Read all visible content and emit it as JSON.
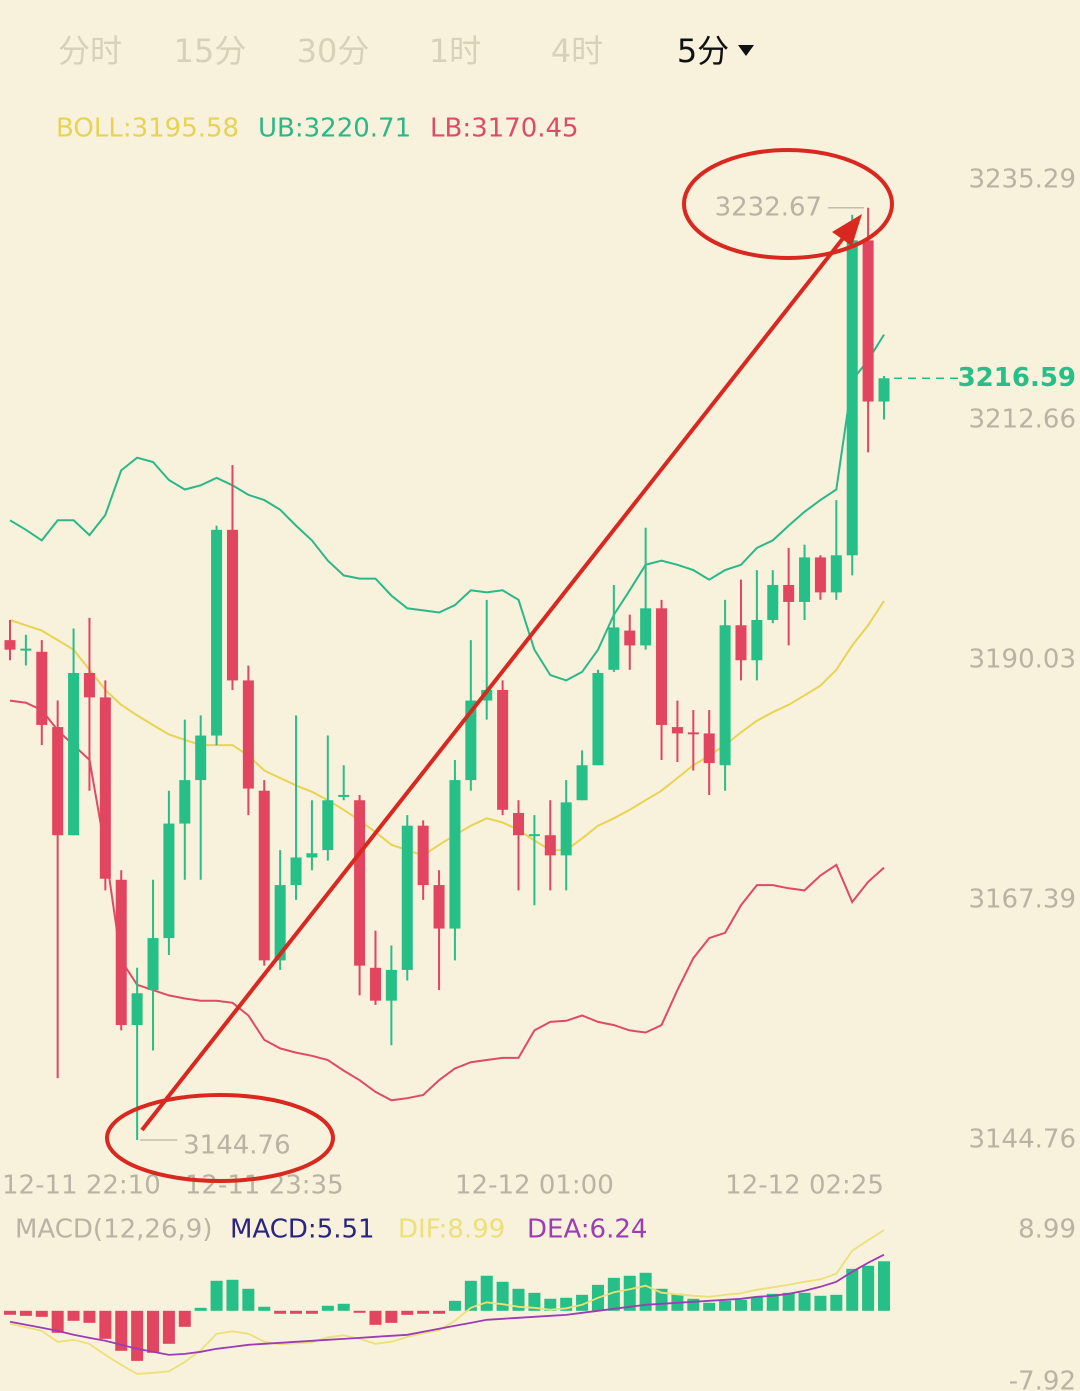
{
  "tabs": [
    "分时",
    "15分",
    "30分",
    "1时",
    "4时",
    "5分"
  ],
  "chart_data": [
    {
      "type": "candlestick",
      "categories": [
        "12-11 22:10",
        null,
        null,
        null,
        null,
        null,
        null,
        null,
        null,
        null,
        null,
        null,
        null,
        null,
        null,
        null,
        "12-11 23:35",
        null,
        null,
        null,
        null,
        null,
        null,
        null,
        null,
        null,
        null,
        null,
        null,
        null,
        null,
        null,
        null,
        "12-12 01:00",
        null,
        null,
        null,
        null,
        null,
        null,
        null,
        null,
        null,
        null,
        null,
        null,
        null,
        null,
        null,
        null,
        "12-12 02:25",
        null,
        null,
        null,
        null,
        null
      ],
      "open": [
        3191.9,
        3191.0,
        3190.8,
        3183.7,
        3173.5,
        3188.8,
        3186.5,
        3169.3,
        3155.6,
        3158.9,
        3163.8,
        3174.6,
        3178.7,
        3182.9,
        3202.3,
        3188.1,
        3177.7,
        3161.7,
        3168.8,
        3171.4,
        3172.1,
        3177.2,
        3176.8,
        3161.0,
        3157.9,
        3160.8,
        3174.4,
        3168.8,
        3164.7,
        3178.7,
        3186.2,
        3187.2,
        3175.6,
        3173.5,
        3173.5,
        3171.6,
        3176.8,
        3180.1,
        3189.1,
        3192.8,
        3191.4,
        3194.9,
        3183.7,
        3183.2,
        3183.1,
        3180.1,
        3193.3,
        3190.0,
        3193.8,
        3197.1,
        3195.5,
        3199.7,
        3196.4,
        3199.9,
        3229.6,
        3214.4
      ],
      "high": [
        3193.8,
        3192.4,
        3191.9,
        3186.2,
        3193.0,
        3194.0,
        3188.1,
        3170.2,
        3161.0,
        3169.3,
        3177.7,
        3184.4,
        3184.8,
        3202.7,
        3208.4,
        3189.5,
        3178.7,
        3172.1,
        3184.8,
        3176.8,
        3182.9,
        3180.1,
        3177.3,
        3164.5,
        3163.1,
        3175.4,
        3174.9,
        3170.2,
        3180.6,
        3191.9,
        3195.7,
        3188.1,
        3176.8,
        3175.4,
        3176.8,
        3178.7,
        3181.5,
        3189.1,
        3197.1,
        3194.3,
        3202.5,
        3195.7,
        3186.2,
        3185.3,
        3185.3,
        3195.7,
        3197.6,
        3198.5,
        3198.5,
        3200.6,
        3200.9,
        3199.9,
        3205.1,
        3232.0,
        3232.67,
        3216.8
      ],
      "low": [
        3190.0,
        3189.5,
        3182.0,
        3150.6,
        3173.5,
        3177.7,
        3168.3,
        3155.1,
        3144.76,
        3153.2,
        3162.2,
        3169.3,
        3169.3,
        3182.0,
        3187.2,
        3175.4,
        3161.2,
        3160.8,
        3167.4,
        3170.2,
        3171.1,
        3176.8,
        3158.4,
        3157.5,
        3153.7,
        3159.8,
        3167.4,
        3158.9,
        3161.7,
        3177.7,
        3184.4,
        3175.4,
        3168.3,
        3166.9,
        3168.3,
        3168.3,
        3176.8,
        3180.1,
        3188.9,
        3189.1,
        3191.0,
        3180.6,
        3180.4,
        3179.6,
        3177.3,
        3177.7,
        3188.1,
        3188.1,
        3193.5,
        3191.4,
        3193.8,
        3195.7,
        3195.7,
        3198.0,
        3209.6,
        3212.7
      ],
      "close": [
        3191.0,
        3191.1,
        3183.9,
        3173.5,
        3188.8,
        3186.5,
        3169.4,
        3155.6,
        3158.6,
        3163.8,
        3174.6,
        3178.7,
        3182.9,
        3202.3,
        3188.1,
        3177.9,
        3161.7,
        3168.8,
        3171.4,
        3171.8,
        3176.8,
        3177.3,
        3161.2,
        3157.9,
        3160.8,
        3174.4,
        3168.8,
        3164.7,
        3178.7,
        3186.2,
        3187.2,
        3175.9,
        3173.5,
        3173.6,
        3171.6,
        3176.6,
        3180.1,
        3188.8,
        3193.1,
        3191.4,
        3194.9,
        3183.9,
        3183.1,
        3183.1,
        3180.3,
        3193.3,
        3190.0,
        3193.8,
        3197.1,
        3195.5,
        3199.7,
        3196.4,
        3199.9,
        3229.6,
        3214.4,
        3216.59
      ],
      "up_color": "#26bf87",
      "down_color": "#e2455f",
      "series": [
        {
          "name": "BOLL:3195.58",
          "color": "#e6d453",
          "values": [
            3193.8,
            3193.3,
            3192.8,
            3191.9,
            3191.0,
            3189.1,
            3187.2,
            3185.8,
            3184.8,
            3183.9,
            3183.0,
            3182.5,
            3182.0,
            3182.0,
            3182.0,
            3181.0,
            3179.6,
            3178.9,
            3178.2,
            3177.6,
            3176.8,
            3175.9,
            3174.9,
            3173.8,
            3172.6,
            3172.1,
            3171.6,
            3172.6,
            3173.5,
            3174.4,
            3175.1,
            3174.7,
            3174.0,
            3173.0,
            3172.1,
            3172.1,
            3173.2,
            3174.4,
            3175.1,
            3175.9,
            3176.8,
            3177.7,
            3178.9,
            3180.1,
            3181.0,
            3182.0,
            3183.2,
            3184.3,
            3185.1,
            3185.8,
            3186.7,
            3187.6,
            3189.1,
            3191.4,
            3193.3,
            3195.58
          ]
        },
        {
          "name": "UB:3220.71",
          "color": "#2bb889",
          "values": [
            3203.2,
            3202.3,
            3201.3,
            3203.2,
            3203.2,
            3201.8,
            3203.7,
            3207.9,
            3209.1,
            3208.7,
            3207.0,
            3206.1,
            3206.5,
            3207.2,
            3206.5,
            3205.6,
            3205.1,
            3204.2,
            3202.7,
            3201.3,
            3199.4,
            3198.0,
            3197.7,
            3197.7,
            3196.1,
            3194.9,
            3194.7,
            3194.5,
            3195.2,
            3196.6,
            3196.4,
            3196.6,
            3195.7,
            3191.0,
            3188.6,
            3188.1,
            3188.9,
            3191.0,
            3194.3,
            3196.6,
            3199.0,
            3199.4,
            3199.0,
            3198.5,
            3197.6,
            3198.5,
            3199.0,
            3200.6,
            3201.3,
            3202.7,
            3204.0,
            3205.1,
            3206.1,
            3216.4,
            3218.3,
            3220.71
          ]
        },
        {
          "name": "LB:3170.45",
          "color": "#df4b63",
          "values": [
            3186.2,
            3186.0,
            3185.3,
            3183.4,
            3182.0,
            3180.6,
            3172.1,
            3161.7,
            3159.4,
            3158.9,
            3158.4,
            3158.1,
            3157.9,
            3157.9,
            3157.7,
            3156.5,
            3154.2,
            3153.4,
            3153.0,
            3152.7,
            3152.3,
            3151.3,
            3150.4,
            3149.3,
            3148.5,
            3148.7,
            3149.0,
            3150.4,
            3151.5,
            3152.1,
            3152.3,
            3152.5,
            3152.5,
            3155.1,
            3155.9,
            3156.0,
            3156.5,
            3155.9,
            3155.6,
            3155.1,
            3154.9,
            3155.6,
            3158.9,
            3161.9,
            3163.8,
            3164.3,
            3166.9,
            3168.8,
            3168.8,
            3168.5,
            3168.3,
            3169.7,
            3170.7,
            3167.2,
            3169.1,
            3170.45
          ]
        }
      ],
      "ylim": [
        3144.76,
        3235.29
      ],
      "yticks": [
        3144.76,
        3167.39,
        3190.03,
        3212.66,
        3235.29
      ],
      "last_price": 3216.59,
      "high_annotation": 3232.67,
      "low_annotation": 3144.76
    },
    {
      "type": "macd",
      "title": "MACD(12,26,9)",
      "up_color": "#26bf87",
      "down_color": "#e2455f",
      "histogram": {
        "name": "MACD:5.51",
        "color": "#2a2580",
        "values": [
          -0.44,
          -0.56,
          -0.67,
          -2.45,
          -1.11,
          -1.34,
          -3.12,
          -4.45,
          -5.57,
          -4.67,
          -3.67,
          -1.78,
          0.33,
          3.34,
          3.45,
          2.45,
          0.45,
          -0.33,
          -0.33,
          -0.33,
          0.56,
          0.78,
          -0.22,
          -1.56,
          -1.34,
          -0.45,
          -0.33,
          -0.33,
          1.11,
          3.34,
          3.9,
          3.23,
          2.45,
          2.0,
          1.34,
          1.45,
          1.78,
          2.89,
          3.67,
          3.9,
          4.23,
          2.45,
          1.89,
          1.34,
          0.89,
          1.11,
          1.22,
          1.56,
          1.89,
          2.0,
          2.0,
          1.67,
          1.78,
          4.67,
          5.01,
          5.51
        ]
      },
      "series": [
        {
          "name": "DIF:8.99",
          "color": "#ece07a",
          "values": [
            -1.44,
            -1.84,
            -2.23,
            -3.46,
            -3.23,
            -3.68,
            -4.9,
            -6.01,
            -7.02,
            -6.9,
            -6.74,
            -5.68,
            -4.39,
            -2.56,
            -2.28,
            -2.55,
            -3.44,
            -3.73,
            -3.62,
            -3.51,
            -2.95,
            -2.73,
            -3.12,
            -3.67,
            -3.45,
            -2.9,
            -2.51,
            -2.17,
            -1.11,
            0.33,
            0.95,
            0.73,
            0.45,
            0.33,
            0.11,
            0.28,
            0.67,
            1.45,
            2.06,
            2.4,
            2.79,
            2.01,
            1.84,
            1.67,
            1.56,
            1.78,
            1.95,
            2.34,
            2.62,
            2.89,
            3.23,
            3.51,
            4.12,
            6.68,
            7.85,
            8.99
          ]
        },
        {
          "name": "DEA:6.24",
          "color": "#9b3db5",
          "values": [
            -1.22,
            -1.56,
            -1.89,
            -2.23,
            -2.67,
            -3.01,
            -3.34,
            -3.78,
            -4.23,
            -4.56,
            -4.9,
            -4.79,
            -4.56,
            -4.23,
            -4.01,
            -3.78,
            -3.67,
            -3.56,
            -3.45,
            -3.34,
            -3.23,
            -3.12,
            -3.01,
            -2.89,
            -2.78,
            -2.67,
            -2.34,
            -2.0,
            -1.67,
            -1.34,
            -1.0,
            -0.89,
            -0.78,
            -0.67,
            -0.56,
            -0.45,
            -0.22,
            0,
            0.22,
            0.45,
            0.67,
            0.78,
            0.89,
            1.0,
            1.11,
            1.22,
            1.34,
            1.56,
            1.67,
            1.89,
            2.23,
            2.67,
            3.23,
            4.34,
            5.34,
            6.24
          ]
        }
      ],
      "ylim": [
        -7.92,
        8.99
      ],
      "yticks": [
        -7.92,
        8.99
      ]
    }
  ]
}
